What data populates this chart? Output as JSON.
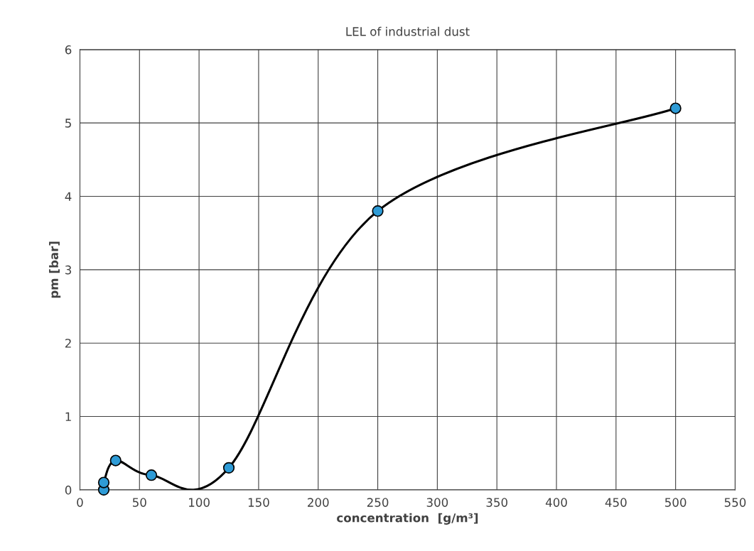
{
  "chart_data": {
    "type": "line",
    "title": "LEL of industrial dust",
    "xlabel": "concentration  [g/m³]",
    "ylabel": "pm [bar]",
    "series": [
      {
        "color": "#2e9bd6",
        "x": [
          20,
          20,
          30,
          60,
          125,
          250,
          500
        ],
        "values": [
          0,
          0.1,
          0.4,
          0.2,
          0.3,
          3.8,
          5.2
        ]
      }
    ],
    "xlim": [
      0,
      550
    ],
    "xticks": [
      0,
      50,
      100,
      150,
      200,
      250,
      300,
      350,
      400,
      450,
      500,
      550
    ],
    "ylim": [
      0,
      6
    ],
    "yticks": [
      0,
      1,
      2,
      3,
      4,
      5,
      6
    ],
    "grid": true,
    "marker": "circle",
    "legend": false
  }
}
